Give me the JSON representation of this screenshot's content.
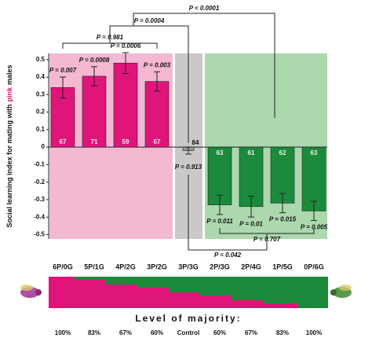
{
  "chart_data": {
    "type": "bar",
    "ylabel_parts": [
      "Social learning index for mating with",
      "pink",
      "males"
    ],
    "categories": [
      "6P/0G",
      "5P/1G",
      "4P/2G",
      "3P/2G",
      "3P/3G",
      "2P/3G",
      "2P/4G",
      "1P/5G",
      "0P/6G"
    ],
    "values": [
      0.34,
      0.405,
      0.48,
      0.375,
      -0.02,
      -0.33,
      -0.34,
      -0.32,
      -0.365
    ],
    "errors": [
      0.06,
      0.055,
      0.06,
      0.055,
      0.02,
      0.055,
      0.06,
      0.055,
      0.055
    ],
    "colors": [
      "#e0157a",
      "#e0157a",
      "#e0157a",
      "#e0157a",
      "#9a9a9a",
      "#1b8a3b",
      "#1b8a3b",
      "#1b8a3b",
      "#1b8a3b"
    ],
    "n": [
      "67",
      "71",
      "59",
      "67",
      "84",
      "63",
      "61",
      "62",
      "63"
    ],
    "p_values": [
      "P = 0.007",
      "P = 0.0008",
      "P = 0.0006",
      "P = 0.003",
      "P = 0.913",
      "P = 0.011",
      "P = 0.01",
      "P = 0.015",
      "P = 0.005"
    ],
    "comparisons": [
      "P = 0.981",
      "P = 0.0004",
      "P < 0.0001",
      "P = 0.707",
      "P = 0.042"
    ],
    "ylim": [
      -0.525,
      0.535
    ],
    "yticks": [
      -0.5,
      -0.4,
      -0.3,
      -0.2,
      -0.1,
      0,
      0.1,
      0.2,
      0.3,
      0.4,
      0.5
    ],
    "majority_title": "Level of majority:",
    "majority_levels": [
      "100%",
      "83%",
      "67%",
      "60%",
      "Control",
      "60%",
      "67%",
      "83%",
      "100%"
    ]
  }
}
